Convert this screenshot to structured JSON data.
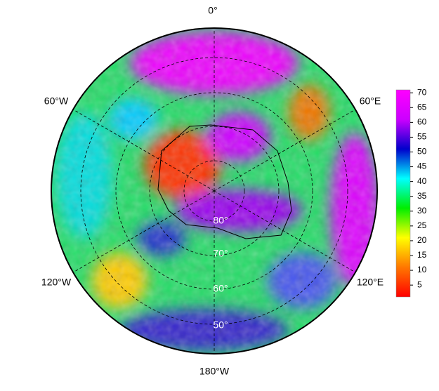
{
  "map": {
    "lon_labels": [
      "0°",
      "60°W",
      "60°E",
      "120°W",
      "120°E",
      "180°W"
    ],
    "lat_labels": [
      "80°",
      "70°",
      "60°",
      "50°"
    ],
    "colorbar": {
      "range": [
        1,
        71
      ],
      "ticks": [
        5,
        10,
        15,
        20,
        25,
        30,
        35,
        40,
        45,
        50,
        55,
        60,
        65,
        70
      ],
      "colors": [
        "#ff0000",
        "#ff7700",
        "#ffff00",
        "#00ee00",
        "#00ffff",
        "#0000cc",
        "#cc00ff",
        "#ff00ff"
      ]
    }
  }
}
